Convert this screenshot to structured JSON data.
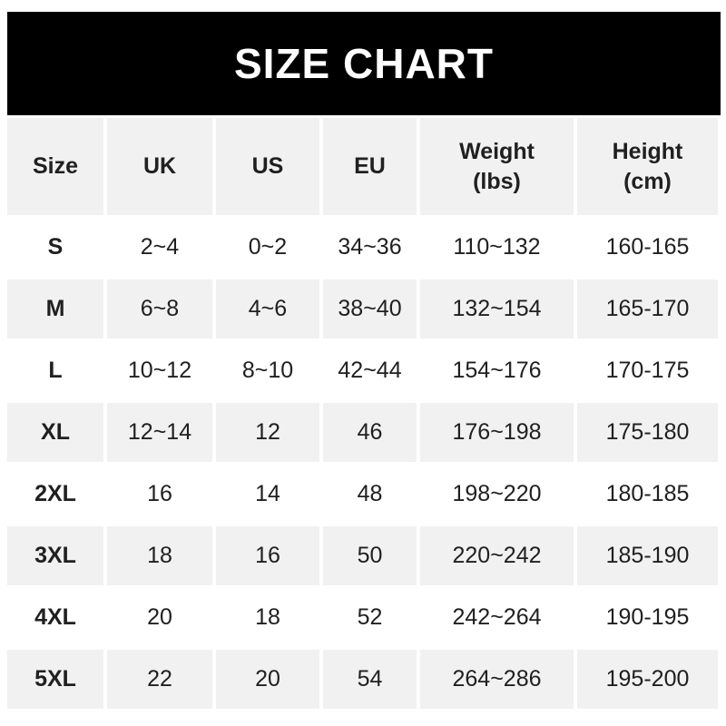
{
  "chart_data": {
    "type": "table",
    "title": "SIZE CHART",
    "columns": [
      "Size",
      "UK",
      "US",
      "EU",
      "Weight (lbs)",
      "Height (cm)"
    ],
    "header_lines": [
      [
        "Size"
      ],
      [
        "UK"
      ],
      [
        "US"
      ],
      [
        "EU"
      ],
      [
        "Weight",
        "(lbs)"
      ],
      [
        "Height",
        "(cm)"
      ]
    ],
    "rows": [
      [
        "S",
        "2~4",
        "0~2",
        "34~36",
        "110~132",
        "160-165"
      ],
      [
        "M",
        "6~8",
        "4~6",
        "38~40",
        "132~154",
        "165-170"
      ],
      [
        "L",
        "10~12",
        "8~10",
        "42~44",
        "154~176",
        "170-175"
      ],
      [
        "XL",
        "12~14",
        "12",
        "46",
        "176~198",
        "175-180"
      ],
      [
        "2XL",
        "16",
        "14",
        "48",
        "198~220",
        "180-185"
      ],
      [
        "3XL",
        "18",
        "16",
        "50",
        "220~242",
        "185-190"
      ],
      [
        "4XL",
        "20",
        "18",
        "52",
        "242~264",
        "190-195"
      ],
      [
        "5XL",
        "22",
        "20",
        "54",
        "264~286",
        "195-200"
      ]
    ],
    "layout": {
      "shaded_rows": "header and alternating data rows starting with M",
      "grid": "white gutters between cells"
    }
  },
  "colors": {
    "banner_bg": "#000000",
    "banner_text": "#ffffff",
    "row_shade": "#f1f1f1",
    "text": "#202020",
    "page_bg": "#ffffff"
  }
}
